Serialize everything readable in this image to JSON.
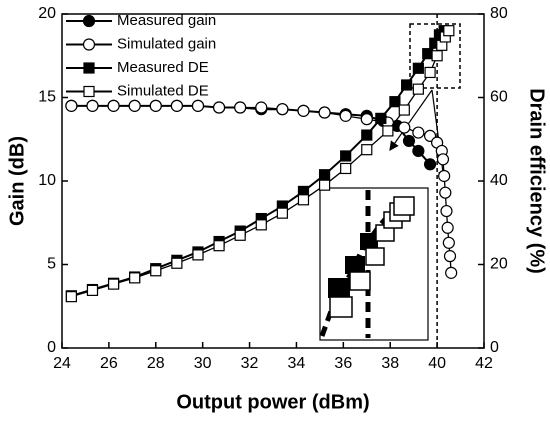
{
  "chart_data": {
    "type": "line",
    "xlabel": "Output power (dBm)",
    "ylabel": "Gain (dB)",
    "y2label": "Drain efficiency (%)",
    "xlim": [
      24,
      42
    ],
    "xticks": [
      24,
      26,
      28,
      30,
      32,
      34,
      36,
      38,
      40,
      42
    ],
    "ylim": [
      0,
      20
    ],
    "yticks": [
      0,
      5,
      10,
      15,
      20
    ],
    "y2lim": [
      0,
      80
    ],
    "y2ticks": [
      0,
      20,
      40,
      60,
      80
    ],
    "legend": "upper left",
    "vline": 40,
    "series": [
      {
        "name": "Measured gain",
        "color": "#000000",
        "marker": "circle",
        "marker_fill": "#000000",
        "x": [
          24.4,
          25.3,
          26.2,
          27.1,
          28.0,
          28.9,
          29.8,
          30.7,
          31.6,
          32.5,
          33.4,
          34.3,
          35.2,
          36.1,
          37.0,
          37.7,
          38.3,
          38.8,
          39.2,
          39.7
        ],
        "values": [
          14.5,
          14.5,
          14.5,
          14.5,
          14.5,
          14.5,
          14.5,
          14.4,
          14.4,
          14.3,
          14.3,
          14.2,
          14.1,
          14.0,
          13.9,
          13.6,
          13.3,
          12.4,
          11.8,
          11.0
        ]
      },
      {
        "name": "Simulated gain",
        "color": "#000000",
        "marker": "circle",
        "marker_fill": "#ffffff",
        "x": [
          24.4,
          25.3,
          26.2,
          27.1,
          28.0,
          28.9,
          29.8,
          30.7,
          31.6,
          32.5,
          33.4,
          34.3,
          35.2,
          36.1,
          37.0,
          37.9,
          38.6,
          39.2,
          39.7,
          40.0,
          40.2,
          40.25,
          40.3,
          40.35,
          40.4,
          40.45,
          40.5,
          40.55,
          40.6
        ],
        "values": [
          14.5,
          14.5,
          14.5,
          14.5,
          14.5,
          14.5,
          14.5,
          14.4,
          14.4,
          14.4,
          14.3,
          14.2,
          14.1,
          13.9,
          13.7,
          13.5,
          13.2,
          12.9,
          12.7,
          12.3,
          11.8,
          11.3,
          10.3,
          9.3,
          8.2,
          7.2,
          6.3,
          5.5,
          4.5
        ]
      },
      {
        "name": "Measured DE",
        "color": "#000000",
        "marker": "square",
        "marker_fill": "#000000",
        "axis": "y2",
        "x": [
          24.4,
          25.3,
          26.2,
          27.1,
          28.0,
          28.9,
          29.8,
          30.7,
          31.6,
          32.5,
          33.4,
          34.3,
          35.2,
          36.1,
          37.0,
          37.6,
          38.2,
          38.7,
          39.2,
          39.6,
          39.9,
          40.1,
          40.3
        ],
        "values": [
          12.5,
          14,
          15.5,
          17,
          19,
          21,
          23,
          25.5,
          28,
          31,
          34,
          37.5,
          41.5,
          46,
          51,
          55,
          59,
          63,
          67,
          70.5,
          73,
          75,
          76
        ]
      },
      {
        "name": "Simulated DE",
        "color": "#000000",
        "marker": "square",
        "marker_fill": "#ffffff",
        "axis": "y2",
        "x": [
          24.4,
          25.3,
          26.2,
          27.1,
          28.0,
          28.9,
          29.8,
          30.7,
          31.6,
          32.5,
          33.4,
          34.3,
          35.2,
          36.1,
          37.0,
          37.9,
          38.6,
          39.2,
          39.7,
          40.0,
          40.2,
          40.35,
          40.5
        ],
        "values": [
          12.3,
          13.8,
          15.3,
          16.8,
          18.5,
          20.3,
          22.3,
          24.5,
          27,
          29.5,
          32.3,
          35.5,
          39,
          43,
          47.5,
          52,
          57,
          62,
          66,
          70,
          72.5,
          74.5,
          76
        ]
      }
    ]
  }
}
